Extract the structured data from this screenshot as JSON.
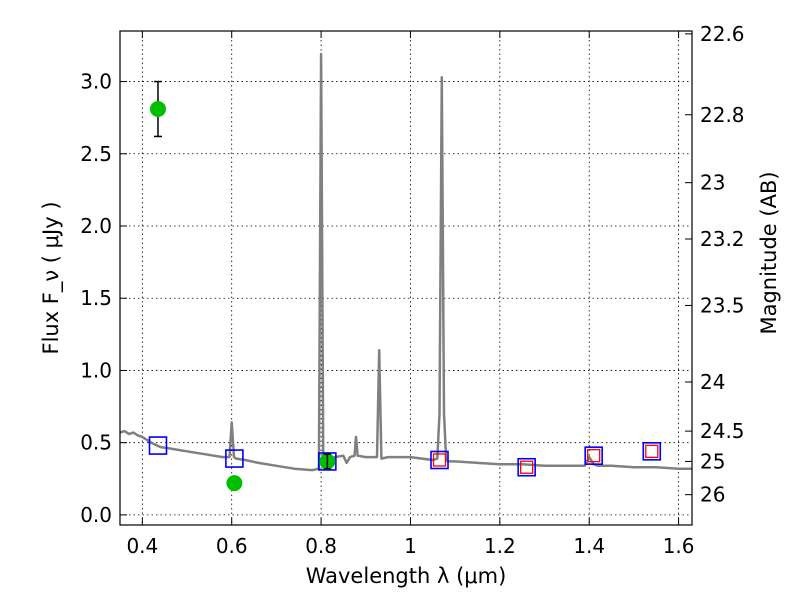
{
  "chart_data": {
    "type": "scatter",
    "xlabel": "Wavelength  λ (μm)",
    "ylabel": "Flux  F_ν  ( μJy )",
    "ylabel_right": "Magnitude (AB)",
    "xlim": [
      0.35,
      1.63
    ],
    "ylim": [
      -0.07,
      3.35
    ],
    "grid": true,
    "x_ticks": [
      0.4,
      0.6,
      0.8,
      1.0,
      1.2,
      1.4,
      1.6
    ],
    "x_tick_labels": [
      "0.4",
      "0.6",
      "0.8",
      "1",
      "1.2",
      "1.4",
      "1.6"
    ],
    "y_ticks": [
      0.0,
      0.5,
      1.0,
      1.5,
      2.0,
      2.5,
      3.0
    ],
    "y_tick_labels": [
      "0.0",
      "0.5",
      "1.0",
      "1.5",
      "2.0",
      "2.5",
      "3.0"
    ],
    "right_ticks": [
      {
        "label": "22.6",
        "flux": 3.33
      },
      {
        "label": "22.8",
        "flux": 2.77
      },
      {
        "label": "23",
        "flux": 2.3
      },
      {
        "label": "23.2",
        "flux": 1.91
      },
      {
        "label": "23.5",
        "flux": 1.45
      },
      {
        "label": "24",
        "flux": 0.92
      },
      {
        "label": "24.5",
        "flux": 0.58
      },
      {
        "label": "25",
        "flux": 0.37
      },
      {
        "label": "26",
        "flux": 0.14
      }
    ],
    "model_spectrum": {
      "color": "#808080",
      "x": [
        0.35,
        0.36,
        0.37,
        0.38,
        0.39,
        0.4,
        0.42,
        0.44,
        0.46,
        0.48,
        0.5,
        0.52,
        0.54,
        0.56,
        0.58,
        0.595,
        0.6,
        0.605,
        0.61,
        0.63,
        0.66,
        0.7,
        0.74,
        0.78,
        0.795,
        0.8,
        0.805,
        0.81,
        0.83,
        0.85,
        0.857,
        0.865,
        0.875,
        0.878,
        0.882,
        0.9,
        0.925,
        0.93,
        0.935,
        0.95,
        1.0,
        1.05,
        1.06,
        1.065,
        1.07,
        1.075,
        1.08,
        1.085,
        1.1,
        1.15,
        1.2,
        1.25,
        1.3,
        1.35,
        1.39,
        1.4,
        1.41,
        1.42,
        1.45,
        1.5,
        1.55,
        1.6,
        1.63
      ],
      "y": [
        0.57,
        0.58,
        0.56,
        0.57,
        0.55,
        0.54,
        0.5,
        0.47,
        0.46,
        0.45,
        0.44,
        0.43,
        0.42,
        0.41,
        0.4,
        0.4,
        0.64,
        0.4,
        0.39,
        0.38,
        0.36,
        0.34,
        0.32,
        0.31,
        0.32,
        3.19,
        0.33,
        0.35,
        0.4,
        0.41,
        0.36,
        0.4,
        0.41,
        0.54,
        0.41,
        0.4,
        0.4,
        1.14,
        0.39,
        0.4,
        0.4,
        0.38,
        0.39,
        0.7,
        3.03,
        0.7,
        0.38,
        0.37,
        0.37,
        0.36,
        0.35,
        0.35,
        0.34,
        0.34,
        0.34,
        0.4,
        0.35,
        0.34,
        0.34,
        0.33,
        0.33,
        0.32,
        0.32
      ]
    },
    "observed_points": {
      "color": "#00bf00",
      "points": [
        {
          "x": 0.435,
          "y": 2.81,
          "yerr": 0.19
        },
        {
          "x": 0.606,
          "y": 0.22,
          "yerr": 0.0
        },
        {
          "x": 0.814,
          "y": 0.37,
          "yerr": 0.05
        }
      ]
    },
    "model_photometry_blue": {
      "color": "#0000ff",
      "points": [
        {
          "x": 0.435,
          "y": 0.48
        },
        {
          "x": 0.606,
          "y": 0.39
        },
        {
          "x": 0.814,
          "y": 0.37
        },
        {
          "x": 1.065,
          "y": 0.38
        },
        {
          "x": 1.26,
          "y": 0.33
        },
        {
          "x": 1.41,
          "y": 0.41
        },
        {
          "x": 1.54,
          "y": 0.44
        }
      ]
    },
    "model_photometry_red": {
      "color": "#ff0000",
      "points": [
        {
          "x": 1.065,
          "y": 0.38
        },
        {
          "x": 1.26,
          "y": 0.33
        },
        {
          "x": 1.41,
          "y": 0.41
        },
        {
          "x": 1.54,
          "y": 0.44
        }
      ]
    }
  }
}
